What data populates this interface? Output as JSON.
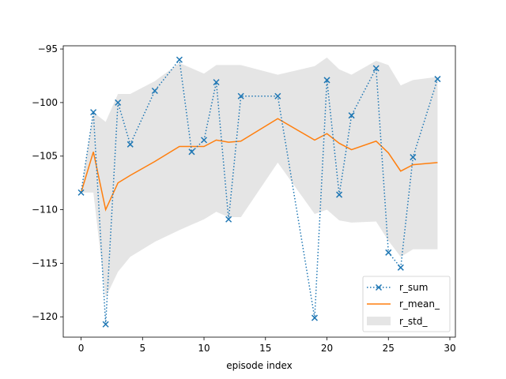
{
  "chart_data": {
    "type": "line",
    "xlabel": "episode index",
    "ylabel": "",
    "title": "",
    "xlim": [
      -1.45,
      30.45
    ],
    "ylim": [
      -121.9,
      -94.7
    ],
    "xticks": [
      0,
      5,
      10,
      15,
      20,
      25,
      30
    ],
    "yticks": [
      -120,
      -115,
      -110,
      -105,
      -100,
      -95
    ],
    "grid": false,
    "legend_position": "lower-right",
    "series": [
      {
        "name": "r_sum",
        "style": "dotted-with-x-markers",
        "color": "#1f77b4",
        "x": [
          0,
          1,
          2,
          3,
          4,
          6,
          8,
          9,
          10,
          11,
          12,
          13,
          16,
          19,
          20,
          21,
          22,
          24,
          25,
          26,
          27,
          29
        ],
        "values": [
          -108.4,
          -100.9,
          -120.7,
          -100.0,
          -103.9,
          -98.9,
          -96.0,
          -104.6,
          -103.5,
          -98.1,
          -110.9,
          -99.4,
          -99.4,
          -120.1,
          -97.9,
          -108.6,
          -101.2,
          -96.8,
          -114.0,
          -115.4,
          -105.1,
          -97.8
        ]
      },
      {
        "name": "r_mean_",
        "style": "solid-line",
        "color": "#ff7f0e",
        "x": [
          0,
          1,
          2,
          3,
          4,
          6,
          8,
          9,
          10,
          11,
          12,
          13,
          16,
          19,
          20,
          21,
          22,
          24,
          25,
          26,
          27,
          29
        ],
        "values": [
          -108.4,
          -104.6,
          -110.0,
          -107.5,
          -106.8,
          -105.5,
          -104.1,
          -104.1,
          -104.1,
          -103.5,
          -103.7,
          -103.6,
          -101.5,
          -103.5,
          -102.9,
          -103.8,
          -104.4,
          -103.6,
          -104.7,
          -106.4,
          -105.8,
          -105.6
        ]
      },
      {
        "name": "r_std_",
        "style": "filled-band",
        "color": "#cccccc",
        "x": [
          0,
          1,
          2,
          3,
          4,
          6,
          8,
          9,
          10,
          11,
          12,
          13,
          16,
          19,
          20,
          21,
          22,
          24,
          25,
          26,
          27,
          29
        ],
        "upper": [
          -108.4,
          -100.9,
          -101.8,
          -99.2,
          -99.2,
          -98.0,
          -96.3,
          -96.8,
          -97.3,
          -96.5,
          -96.5,
          -96.5,
          -97.4,
          -96.6,
          -95.8,
          -96.9,
          -97.4,
          -96.1,
          -96.5,
          -98.4,
          -97.9,
          -97.6
        ],
        "lower": [
          -108.4,
          -108.4,
          -118.2,
          -115.8,
          -114.4,
          -113.0,
          -111.9,
          -111.4,
          -110.9,
          -110.2,
          -110.7,
          -110.7,
          -105.6,
          -110.4,
          -110.0,
          -111.0,
          -111.2,
          -111.1,
          -112.9,
          -114.4,
          -113.7,
          -113.7
        ]
      }
    ]
  }
}
